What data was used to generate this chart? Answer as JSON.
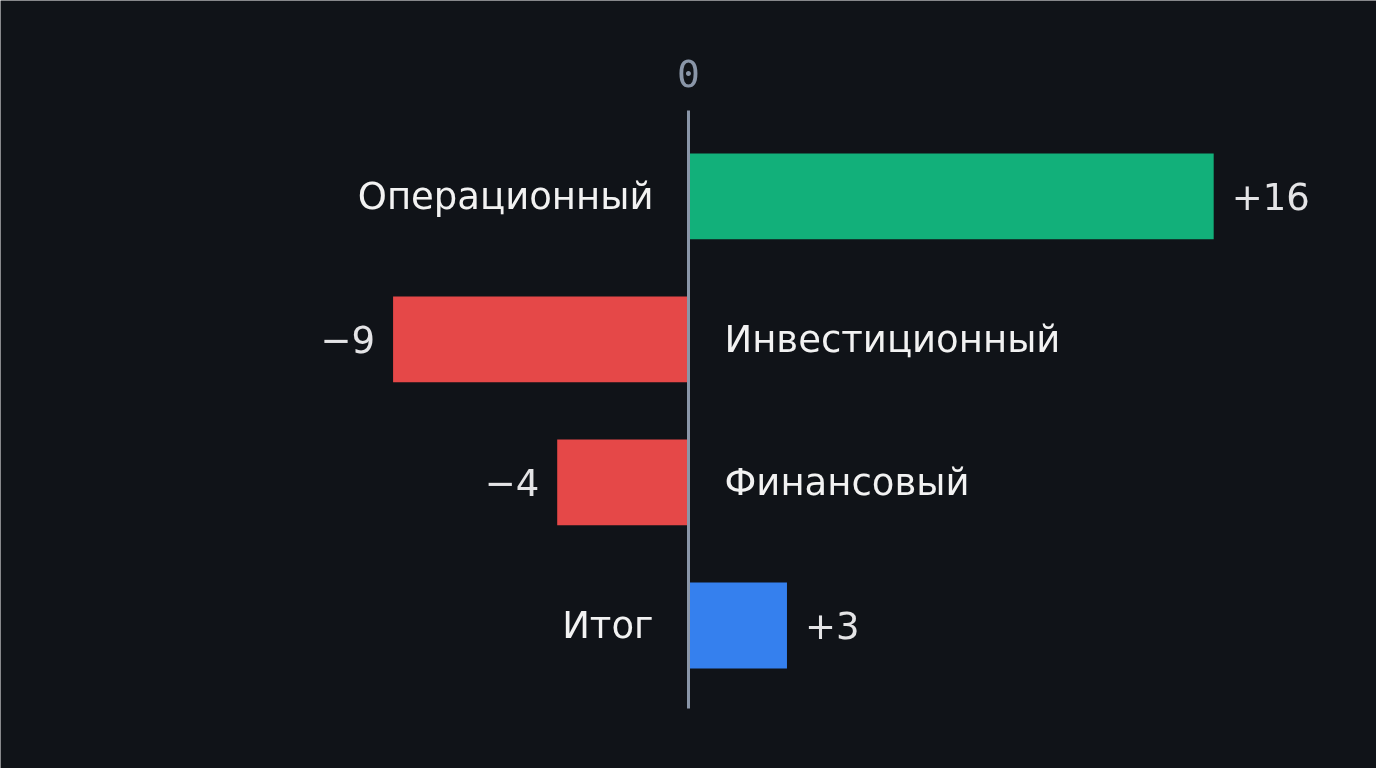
{
  "chart_data": {
    "type": "bar",
    "orientation": "horizontal",
    "categories": [
      "Операционный",
      "Инвестиционный",
      "Финансовый",
      "Итог"
    ],
    "values": [
      16,
      -9,
      -4,
      3
    ],
    "colors": [
      "#12b07a",
      "#e54848",
      "#e54848",
      "#3580ee"
    ],
    "value_labels": [
      "+16",
      "−9",
      "−4",
      "+3"
    ],
    "annotations": [
      "0"
    ]
  }
}
